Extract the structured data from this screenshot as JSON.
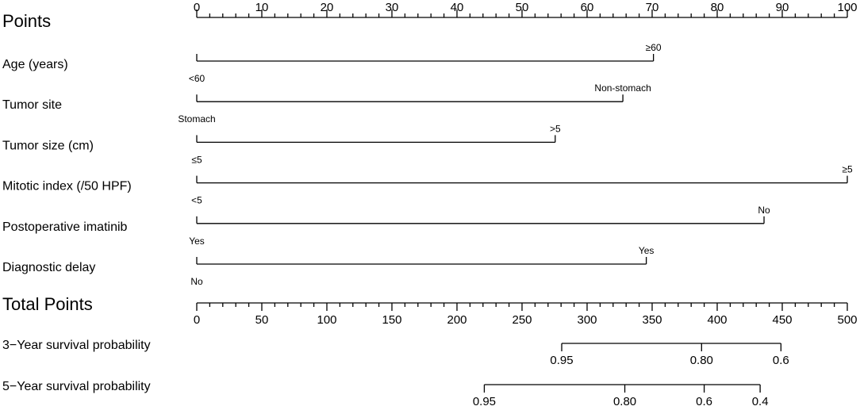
{
  "chart_data": {
    "type": "nomogram",
    "points_axis": {
      "title": "Points",
      "xlim": [
        0,
        100
      ],
      "xticks": [
        0,
        10,
        20,
        30,
        40,
        50,
        60,
        70,
        80,
        90,
        100
      ],
      "minor_ticks": [
        2,
        4,
        6,
        8,
        12,
        14,
        16,
        18,
        22,
        24,
        26,
        28,
        32,
        34,
        36,
        38,
        42,
        44,
        46,
        48,
        52,
        54,
        56,
        58,
        62,
        64,
        66,
        68,
        72,
        74,
        76,
        78,
        82,
        84,
        86,
        88,
        92,
        94,
        96,
        98
      ]
    },
    "variables": [
      {
        "name": "Age (years)",
        "levels": [
          {
            "label": "<60",
            "points": 0
          },
          {
            "label": "≥60",
            "points": 70.2
          }
        ]
      },
      {
        "name": "Tumor site",
        "levels": [
          {
            "label": "Stomach",
            "points": 0
          },
          {
            "label": "Non-stomach",
            "points": 65.5
          }
        ]
      },
      {
        "name": "Tumor size (cm)",
        "levels": [
          {
            "label": "≤5",
            "points": 0
          },
          {
            "label": ">5",
            "points": 55.1
          }
        ]
      },
      {
        "name": "Mitotic index (/50 HPF)",
        "levels": [
          {
            "label": "<5",
            "points": 0
          },
          {
            "label": "≥5",
            "points": 100
          }
        ]
      },
      {
        "name": "Postoperative imatinib",
        "levels": [
          {
            "label": "Yes",
            "points": 0
          },
          {
            "label": "No",
            "points": 87.2
          }
        ]
      },
      {
        "name": "Diagnostic delay",
        "levels": [
          {
            "label": "No",
            "points": 0
          },
          {
            "label": "Yes",
            "points": 69.1
          }
        ]
      }
    ],
    "total_axis": {
      "title": "Total Points",
      "xlim": [
        0,
        500
      ],
      "xticks": [
        0,
        50,
        100,
        150,
        200,
        250,
        300,
        350,
        400,
        450,
        500
      ],
      "minor_ticks": [
        10,
        20,
        30,
        40,
        60,
        70,
        80,
        90,
        110,
        120,
        130,
        140,
        160,
        170,
        180,
        190,
        210,
        220,
        230,
        240,
        260,
        270,
        280,
        290,
        310,
        320,
        330,
        340,
        360,
        370,
        380,
        390,
        410,
        420,
        430,
        440,
        460,
        470,
        480,
        490
      ]
    },
    "survival_axes": [
      {
        "title": "3−Year survival probability",
        "xticks": [
          {
            "value": 280.5,
            "label": "0.95"
          },
          {
            "value": 388,
            "label": "0.80"
          },
          {
            "value": 449,
            "label": "0.6"
          }
        ]
      },
      {
        "title": "5−Year survival probability",
        "xticks": [
          {
            "value": 221,
            "label": "0.95"
          },
          {
            "value": 329,
            "label": "0.80"
          },
          {
            "value": 390,
            "label": "0.6"
          },
          {
            "value": 433,
            "label": "0.4"
          }
        ]
      }
    ]
  }
}
